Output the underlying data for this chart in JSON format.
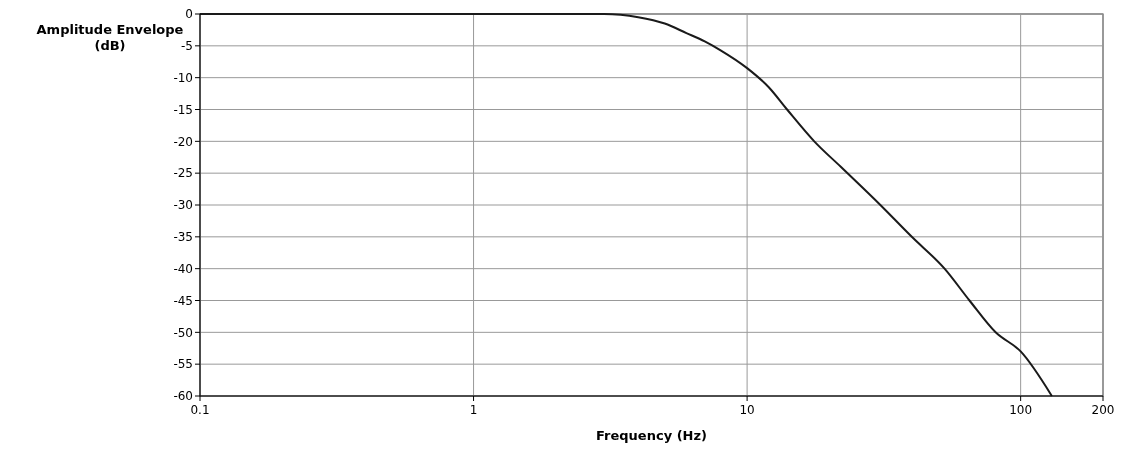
{
  "chart_data": {
    "type": "line",
    "xlabel": "Frequency (Hz)",
    "ylabel": "Amplitude Envelope (dB)",
    "log": "x",
    "xlim": [
      0.1,
      200
    ],
    "xticks": [
      0.1,
      1,
      10,
      100,
      200
    ],
    "ylim": [
      -60,
      0
    ],
    "yticks": [
      0,
      -5,
      -10,
      -15,
      -20,
      -25,
      -30,
      -35,
      -40,
      -45,
      -50,
      -55,
      -60
    ],
    "grid": true,
    "marker": "none",
    "line_style": "solid",
    "x": [
      0.1,
      0.5,
      1,
      2,
      3,
      4,
      5,
      6,
      7,
      8,
      10,
      12,
      14,
      17.6,
      22,
      30.7,
      40,
      52.7,
      65,
      81,
      100,
      130
    ],
    "series": [
      {
        "color": "#1a1a1a",
        "values": [
          0,
          0,
          0,
          0,
          0,
          -0.5,
          -1.5,
          -3,
          -4.3,
          -5.7,
          -8.5,
          -11.5,
          -15,
          -20,
          -24,
          -30,
          -35,
          -40,
          -45,
          -50,
          -53,
          -60
        ]
      }
    ]
  }
}
